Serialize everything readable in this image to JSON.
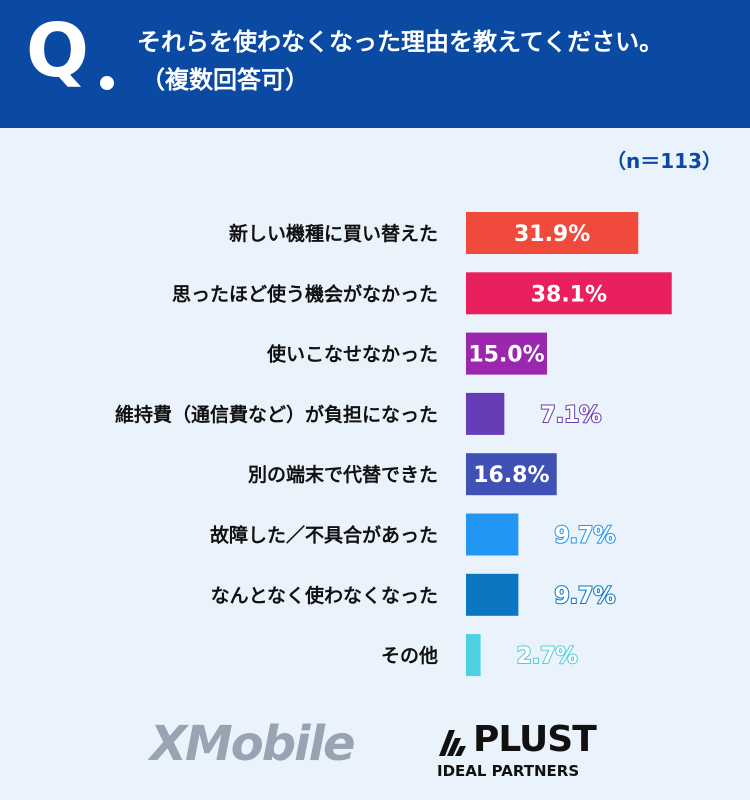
{
  "header": {
    "q_letter": "Q",
    "question_line1": "それらを使わなくなった理由を教えてください。",
    "question_line2": "（複数回答可）"
  },
  "sample_size": "（n＝113）",
  "chart_data": {
    "type": "bar",
    "orientation": "horizontal",
    "unit": "%",
    "categories": [
      "新しい機種に買い替えた",
      "思ったほど使う機会がなかった",
      "使いこなせなかった",
      "維持費（通信費など）が負担になった",
      "別の端末で代替できた",
      "故障した／不具合があった",
      "なんとなく使わなくなった",
      "その他"
    ],
    "values": [
      31.9,
      38.1,
      15.0,
      7.1,
      16.8,
      9.7,
      9.7,
      2.7
    ],
    "value_labels": [
      "31.9%",
      "38.1%",
      "15.0%",
      "7.1%",
      "16.8%",
      "9.7%",
      "9.7%",
      "2.7%"
    ],
    "colors": [
      "#f04a3c",
      "#e8205e",
      "#9b27ae",
      "#673db7",
      "#3f51b4",
      "#2196f3",
      "#0b76c2",
      "#4dd0e1"
    ],
    "xlim": [
      0,
      40
    ],
    "grid": false,
    "legend": "none"
  },
  "logos": {
    "xmobile": "XMobile",
    "plust_name": "PLUST",
    "plust_sub": "IDEAL PARTNERS"
  }
}
